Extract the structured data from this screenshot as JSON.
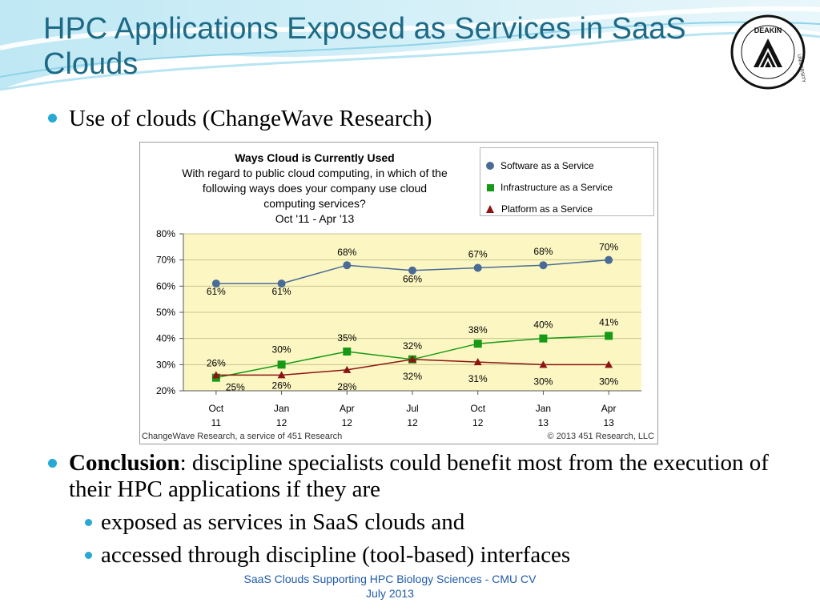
{
  "slide": {
    "title": "HPC Applications Exposed as Services in SaaS Clouds",
    "logo_text": "DEAKIN",
    "logo_ring_text": "UNIVERSITY",
    "bullet1": "Use of clouds (ChangeWave Research)",
    "conclusion_bold": "Conclusion",
    "conclusion_text": ": discipline specialists could benefit most from the execution of their HPC applications if they are",
    "sub_bullets": [
      "exposed as services in SaaS clouds and",
      "accessed through discipline (tool-based) interfaces"
    ],
    "footer_line1": "SaaS Clouds Supporting HPC Biology Sciences - CMU CV",
    "footer_line2": "July 2013",
    "colors": {
      "title": "#1d6a86",
      "bullet": "#27a9d6",
      "footer": "#1f5ba8"
    }
  },
  "chart_data": {
    "type": "line",
    "title": "Ways Cloud is Currently Used",
    "subtitle": [
      "With regard to public cloud computing, in which of the",
      "following ways does your company use cloud",
      "computing services?",
      "Oct '11 - Apr '13"
    ],
    "categories": [
      [
        "Oct",
        "11"
      ],
      [
        "Jan",
        "12"
      ],
      [
        "Apr",
        "12"
      ],
      [
        "Jul",
        "12"
      ],
      [
        "Oct",
        "12"
      ],
      [
        "Jan",
        "13"
      ],
      [
        "Apr",
        "13"
      ]
    ],
    "y_ticks": [
      "20%",
      "30%",
      "40%",
      "50%",
      "60%",
      "70%",
      "80%"
    ],
    "ylim": [
      20,
      80
    ],
    "legend_position": "top-right",
    "plot_background": "#fcf7c2",
    "series": [
      {
        "name": "Software as a Service",
        "color": "#4a6b96",
        "marker": "circle",
        "values": [
          61,
          61,
          68,
          66,
          67,
          68,
          70
        ],
        "labels": [
          "61%",
          "61%",
          "68%",
          "66%",
          "67%",
          "68%",
          "70%"
        ]
      },
      {
        "name": "Infrastructure as a Service",
        "color": "#169a16",
        "marker": "square",
        "values": [
          25,
          30,
          35,
          32,
          38,
          40,
          41
        ],
        "labels": [
          "25%",
          "30%",
          "35%",
          "32%",
          "38%",
          "40%",
          "41%"
        ]
      },
      {
        "name": "Platform as a Service",
        "color": "#8b1414",
        "marker": "triangle",
        "values": [
          26,
          26,
          28,
          32,
          31,
          30,
          30
        ],
        "labels": [
          "26%",
          "26%",
          "28%",
          "32%",
          "31%",
          "30%",
          "30%"
        ]
      }
    ],
    "source_left": "ChangeWave Research, a service of 451 Research",
    "source_right": "© 2013 451 Research, LLC"
  }
}
